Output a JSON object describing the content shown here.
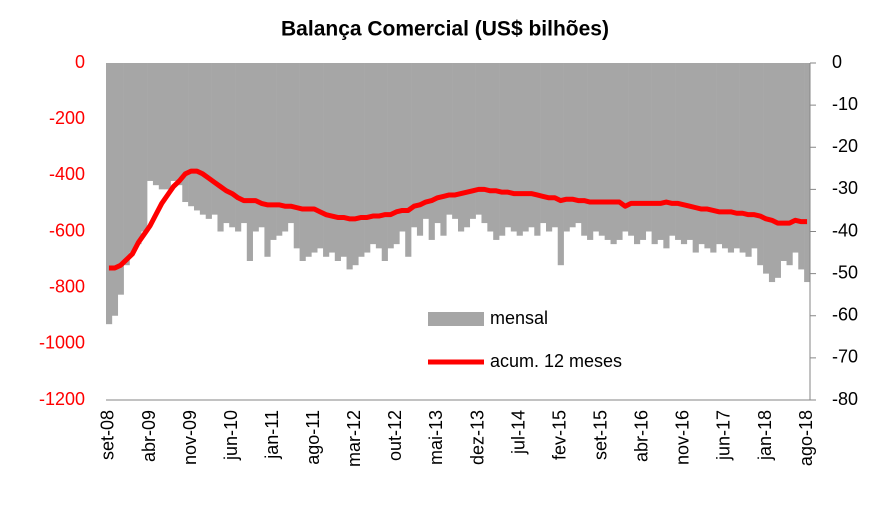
{
  "chart_data": {
    "type": "bar_line",
    "title": "Balança Comercial (US$ bilhões)",
    "categories": [
      "set-08",
      null,
      null,
      null,
      null,
      null,
      null,
      "abr-09",
      null,
      null,
      null,
      null,
      null,
      null,
      "nov-09",
      null,
      null,
      null,
      null,
      null,
      null,
      "jun-10",
      null,
      null,
      null,
      null,
      null,
      null,
      "jan-11",
      null,
      null,
      null,
      null,
      null,
      null,
      "ago-11",
      null,
      null,
      null,
      null,
      null,
      null,
      "mar-12",
      null,
      null,
      null,
      null,
      null,
      null,
      "out-12",
      null,
      null,
      null,
      null,
      null,
      null,
      "mai-13",
      null,
      null,
      null,
      null,
      null,
      null,
      "dez-13",
      null,
      null,
      null,
      null,
      null,
      null,
      "jul-14",
      null,
      null,
      null,
      null,
      null,
      null,
      "fev-15",
      null,
      null,
      null,
      null,
      null,
      null,
      "set-15",
      null,
      null,
      null,
      null,
      null,
      null,
      "abr-16",
      null,
      null,
      null,
      null,
      null,
      null,
      "nov-16",
      null,
      null,
      null,
      null,
      null,
      null,
      "jun-17",
      null,
      null,
      null,
      null,
      null,
      null,
      "jan-18",
      null,
      null,
      null,
      null,
      null,
      null,
      "ago-18"
    ],
    "series": [
      {
        "name": "mensal",
        "type": "bar",
        "axis": "y2",
        "color": "#a6a6a6",
        "values": [
          -62,
          -60,
          -55,
          -48,
          -45,
          -43,
          -40,
          -28,
          -29,
          -30,
          -30,
          -28,
          -29,
          -33,
          -34,
          -35,
          -36,
          -37,
          -36,
          -40,
          -38,
          -39,
          -40,
          -38,
          -47,
          -40,
          -39,
          -46,
          -42,
          -41,
          -40,
          -38,
          -44,
          -47,
          -46,
          -45,
          -44,
          -46,
          -45,
          -47,
          -46,
          -49,
          -48,
          -46,
          -45,
          -43,
          -44,
          -47,
          -44,
          -43,
          -40,
          -46,
          -39,
          -41,
          -37,
          -42,
          -38,
          -41,
          -36,
          -37,
          -40,
          -39,
          -37,
          -36,
          -38,
          -40,
          -42,
          -41,
          -39,
          -40,
          -41,
          -40,
          -39,
          -41,
          -38,
          -40,
          -39,
          -48,
          -40,
          -39,
          -38,
          -41,
          -42,
          -40,
          -41,
          -42,
          -43,
          -42,
          -40,
          -41,
          -43,
          -42,
          -40,
          -43,
          -42,
          -44,
          -41,
          -42,
          -43,
          -42,
          -45,
          -43,
          -44,
          -45,
          -43,
          -44,
          -45,
          -44,
          -45,
          -46,
          -44,
          -48,
          -50,
          -52,
          -51,
          -47,
          -48,
          -45,
          -49,
          -52
        ]
      },
      {
        "name": "acum. 12 meses",
        "type": "line",
        "axis": "y",
        "color": "#ff0000",
        "values": [
          -730,
          -730,
          -720,
          -700,
          -680,
          -640,
          -610,
          -580,
          -540,
          -500,
          -470,
          -440,
          -420,
          -395,
          -385,
          -385,
          -395,
          -410,
          -425,
          -440,
          -455,
          -465,
          -480,
          -490,
          -490,
          -490,
          -500,
          -505,
          -505,
          -505,
          -510,
          -510,
          -515,
          -520,
          -520,
          -520,
          -530,
          -540,
          -545,
          -550,
          -550,
          -555,
          -555,
          -550,
          -550,
          -545,
          -545,
          -540,
          -540,
          -530,
          -525,
          -525,
          -510,
          -505,
          -495,
          -490,
          -480,
          -475,
          -470,
          -470,
          -465,
          -460,
          -455,
          -450,
          -450,
          -455,
          -455,
          -460,
          -460,
          -465,
          -465,
          -465,
          -465,
          -470,
          -475,
          -480,
          -480,
          -490,
          -485,
          -485,
          -490,
          -490,
          -495,
          -495,
          -495,
          -495,
          -495,
          -495,
          -510,
          -500,
          -500,
          -500,
          -500,
          -500,
          -500,
          -495,
          -500,
          -500,
          -505,
          -510,
          -515,
          -520,
          -520,
          -525,
          -530,
          -530,
          -530,
          -535,
          -535,
          -540,
          -540,
          -545,
          -555,
          -560,
          -570,
          -570,
          -570,
          -560,
          -565,
          -565
        ]
      }
    ],
    "ylim": [
      -1200,
      0
    ],
    "yticks": [
      0,
      -200,
      -400,
      -600,
      -800,
      -1000,
      -1200
    ],
    "ytick_color": "#ff0000",
    "y2lim": [
      -80,
      0
    ],
    "y2ticks": [
      0,
      -10,
      -20,
      -30,
      -40,
      -50,
      -60,
      -70,
      -80
    ]
  }
}
